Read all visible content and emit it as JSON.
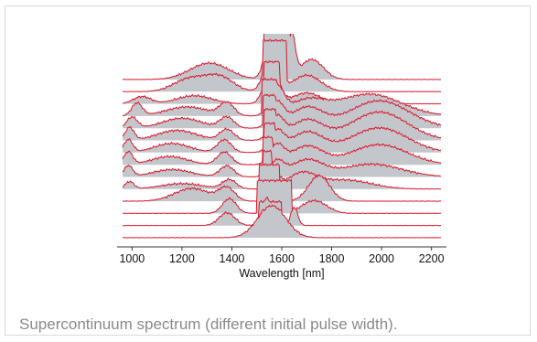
{
  "caption": "Supercontinuum spectrum (different initial pulse width).",
  "colors": {
    "fill": "#c3c6cb",
    "line": "#d8192c",
    "axis": "#333333"
  },
  "chart_data": {
    "type": "area",
    "title": "",
    "xlabel": "Wavelength [nm]",
    "ylabel": "",
    "xlim": [
      940,
      2260
    ],
    "xticks": [
      1000,
      1200,
      1400,
      1600,
      1800,
      2000,
      2200
    ],
    "tick_labels": [
      "1000",
      "1200",
      "1400",
      "1600",
      "1800",
      "2000",
      "2200"
    ],
    "series": [
      {
        "peaks": [
          [
            1310,
            110,
            18
          ],
          [
            1560,
            35,
            55
          ],
          [
            1640,
            20,
            48
          ],
          [
            1720,
            65,
            22
          ]
        ],
        "flat": [
          1530,
          1630,
          68
        ]
      },
      {
        "peaks": [
          [
            1230,
            90,
            14
          ],
          [
            1350,
            80,
            16
          ],
          [
            1560,
            40,
            45
          ],
          [
            1700,
            80,
            18
          ]
        ],
        "flat": [
          1525,
          1620,
          56
        ]
      },
      {
        "peaks": [
          [
            1040,
            50,
            8
          ],
          [
            1250,
            100,
            9
          ],
          [
            1560,
            40,
            40
          ],
          [
            1700,
            80,
            12
          ]
        ],
        "flat": [
          1530,
          1590,
          46
        ]
      },
      {
        "peaks": [
          [
            1020,
            30,
            14
          ],
          [
            1220,
            120,
            10
          ],
          [
            1380,
            40,
            14
          ],
          [
            1580,
            40,
            30
          ],
          [
            1700,
            100,
            16
          ],
          [
            1950,
            180,
            24
          ]
        ],
        "flat": [
          1520,
          1580,
          40
        ]
      },
      {
        "peaks": [
          [
            1000,
            30,
            12
          ],
          [
            1200,
            110,
            11
          ],
          [
            1380,
            40,
            12
          ],
          [
            1580,
            40,
            26
          ],
          [
            1700,
            90,
            22
          ],
          [
            1990,
            170,
            30
          ]
        ],
        "flat": [
          1525,
          1575,
          36
        ]
      },
      {
        "peaks": [
          [
            990,
            25,
            14
          ],
          [
            1180,
            110,
            11
          ],
          [
            1380,
            40,
            12
          ],
          [
            1580,
            40,
            24
          ],
          [
            1700,
            90,
            22
          ],
          [
            1990,
            160,
            31
          ]
        ],
        "flat": [
          1530,
          1575,
          34
        ]
      },
      {
        "peaks": [
          [
            985,
            25,
            14
          ],
          [
            1160,
            100,
            10
          ],
          [
            1370,
            40,
            14
          ],
          [
            1580,
            40,
            22
          ],
          [
            1700,
            90,
            22
          ],
          [
            1990,
            160,
            27
          ]
        ],
        "flat": [
          1530,
          1570,
          32
        ]
      },
      {
        "peaks": [
          [
            985,
            25,
            14
          ],
          [
            1150,
            100,
            9
          ],
          [
            1370,
            40,
            14
          ],
          [
            1580,
            40,
            20
          ],
          [
            1700,
            90,
            20
          ],
          [
            1990,
            160,
            22
          ]
        ],
        "flat": [
          1525,
          1565,
          30
        ]
      },
      {
        "peaks": [
          [
            985,
            25,
            12
          ],
          [
            1160,
            110,
            8
          ],
          [
            1380,
            40,
            12
          ],
          [
            1580,
            40,
            16
          ],
          [
            1700,
            90,
            18
          ],
          [
            1960,
            170,
            14
          ]
        ],
        "flat": [
          1525,
          1560,
          28
        ]
      },
      {
        "peaks": [
          [
            990,
            25,
            8
          ],
          [
            1200,
            120,
            6
          ],
          [
            1390,
            40,
            10
          ],
          [
            1570,
            30,
            16
          ],
          [
            1680,
            80,
            16
          ],
          [
            1850,
            150,
            10
          ]
        ],
        "flat": [
          1520,
          1570,
          26
        ]
      },
      {
        "peaks": [
          [
            1240,
            100,
            14
          ],
          [
            1380,
            45,
            14
          ],
          [
            1560,
            30,
            12
          ],
          [
            1750,
            60,
            28
          ]
        ],
        "flat": [
          1510,
          1590,
          40
        ]
      },
      {
        "peaks": [
          [
            1390,
            40,
            16
          ],
          [
            1730,
            70,
            14
          ]
        ],
        "flat": [
          1500,
          1640,
          36
        ]
      },
      {
        "peaks": [
          [
            1380,
            45,
            14
          ],
          [
            1540,
            30,
            30
          ],
          [
            1650,
            20,
            20
          ]
        ],
        "flat": [
          1510,
          1600,
          26
        ]
      },
      {
        "peaks": [
          [
            1560,
            80,
            35
          ]
        ],
        "flat": [
          1520,
          1600,
          30
        ]
      }
    ]
  }
}
